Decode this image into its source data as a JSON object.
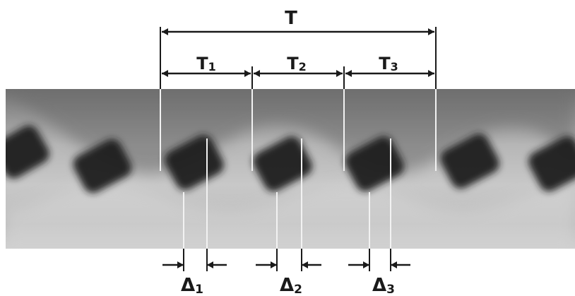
{
  "diagram": {
    "period_labels": {
      "total": "T",
      "t1": {
        "main": "T",
        "sub": "1"
      },
      "t2": {
        "main": "T",
        "sub": "2"
      },
      "t3": {
        "main": "T",
        "sub": "3"
      }
    },
    "offset_labels": {
      "d1": {
        "main": "Δ",
        "sub": "1"
      },
      "d2": {
        "main": "Δ",
        "sub": "2"
      },
      "d3": {
        "main": "Δ",
        "sub": "3"
      }
    },
    "colors": {
      "band_dark": "#6f6f6f",
      "band_light": "#c9c9c9",
      "marker": "#1a1a1a",
      "guide_line": "#f2f2f2",
      "shape": "#1e1e1e"
    }
  }
}
